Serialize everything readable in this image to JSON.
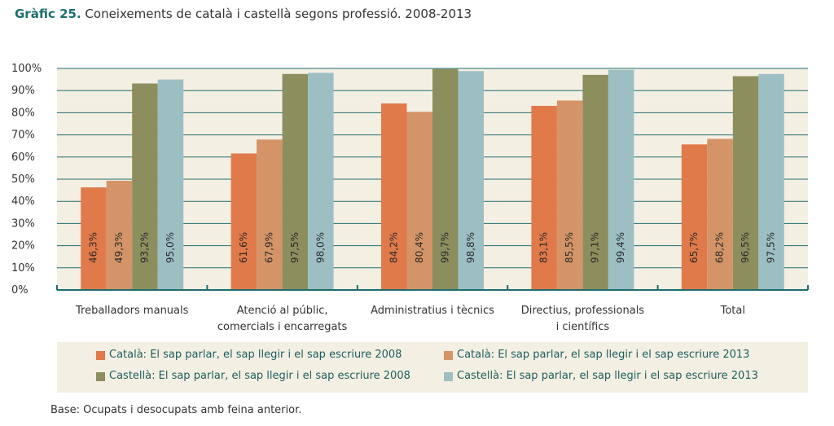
{
  "chart_data": {
    "type": "bar",
    "title_number": "Gràfic 25.",
    "title": "Coneixements de català i castellà segons professió. 2008-2013",
    "categories": [
      [
        "Treballadors manuals"
      ],
      [
        "Atenció al públic,",
        "comercials i encarregats"
      ],
      [
        "Administratius i tècnics"
      ],
      [
        "Directius, professionals",
        "i científics"
      ],
      [
        "Total"
      ]
    ],
    "series": [
      {
        "name": "Català: El sap parlar, el sap llegir i el sap escriure 2008",
        "color": "#e07a4b",
        "values": [
          46.3,
          61.6,
          84.2,
          83.1,
          65.7
        ],
        "labels": [
          "46,3%",
          "61,6%",
          "84,2%",
          "83,1%",
          "65,7%"
        ]
      },
      {
        "name": "Català: El sap parlar, el sap llegir i el sap escriure 2013",
        "color": "#d49467",
        "values": [
          49.3,
          67.9,
          80.4,
          85.5,
          68.2
        ],
        "labels": [
          "49,3%",
          "67,9%",
          "80,4%",
          "85,5%",
          "68,2%"
        ]
      },
      {
        "name": "Castellà: El sap parlar, el sap llegir i el sap escriure 2008",
        "color": "#8c8e5e",
        "values": [
          93.2,
          97.5,
          99.7,
          97.1,
          96.5
        ],
        "labels": [
          "93,2%",
          "97,5%",
          "99,7%",
          "97,1%",
          "96,5%"
        ]
      },
      {
        "name": "Castellà: El sap parlar, el sap llegir i el sap escriure 2013",
        "color": "#9dbfc4",
        "values": [
          95.0,
          98.0,
          98.8,
          99.4,
          97.5
        ],
        "labels": [
          "95,0%",
          "98,0%",
          "98,8%",
          "99,4%",
          "97,5%"
        ]
      }
    ],
    "yticks": [
      "0%",
      "10%",
      "20%",
      "30%",
      "40%",
      "50%",
      "60%",
      "70%",
      "80%",
      "90%",
      "100%"
    ],
    "ylim": [
      0,
      100
    ],
    "grid": true,
    "legend_position": "bottom",
    "colors": {
      "background": "#f4efe3",
      "grid": "#1e6e6e",
      "axis": "#1e6e6e",
      "text": "#1b5f5f"
    }
  },
  "footnote": "Base: Ocupats i desocupats amb feina anterior."
}
